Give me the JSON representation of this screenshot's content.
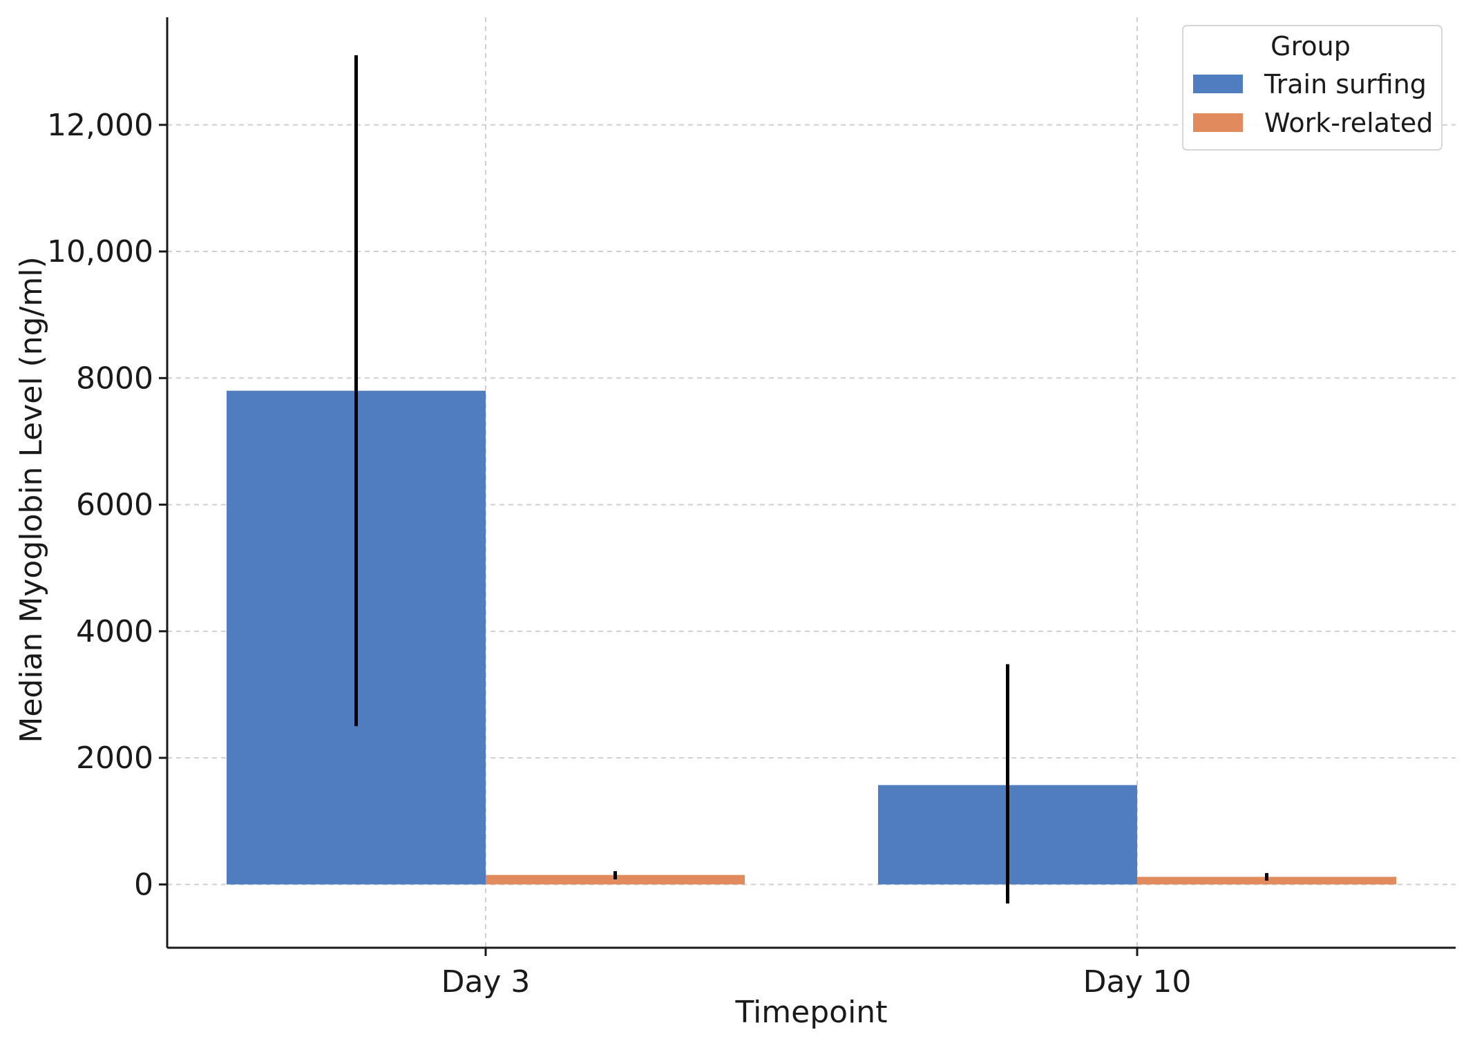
{
  "chart_data": {
    "type": "bar",
    "xlabel": "Timepoint",
    "ylabel": "Median Myoglobin Level (ng/ml)",
    "categories": [
      "Day 3",
      "Day 10"
    ],
    "ylim": [
      -1000,
      13700
    ],
    "yticks": [
      0,
      2000,
      4000,
      6000,
      8000,
      10000,
      12000
    ],
    "ytick_labels": [
      "0",
      "2000",
      "4000",
      "6000",
      "8000",
      "10,000",
      "12,000"
    ],
    "grid": true,
    "legend": {
      "title": "Group",
      "placement": "top-right"
    },
    "series": [
      {
        "name": "Train surfing",
        "color": "#4f7dbf",
        "values": [
          7800,
          1570
        ],
        "error_low": [
          2500,
          -300
        ],
        "error_high": [
          13100,
          3480
        ]
      },
      {
        "name": "Work-related",
        "color": "#e08a5e",
        "values": [
          150,
          120
        ],
        "error_low": [
          80,
          60
        ],
        "error_high": [
          210,
          180
        ]
      }
    ]
  }
}
